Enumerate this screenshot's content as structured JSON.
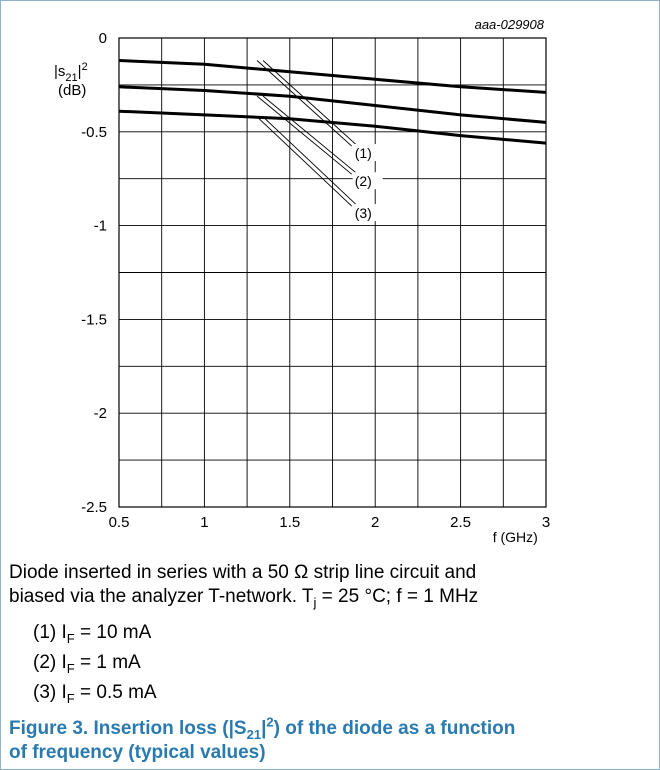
{
  "chart_data": {
    "type": "line",
    "id_label": "aaa-029908",
    "ylabel_main": "|s",
    "ylabel_sub": "21",
    "ylabel_tail": "|",
    "ylabel_sup": "2",
    "ylabel_unit": "(dB)",
    "xlabel": "f (GHz)",
    "xlim": [
      0.5,
      3.0
    ],
    "ylim": [
      -2.5,
      0
    ],
    "grid": true,
    "x_ticks": [
      0.5,
      1,
      1.5,
      2,
      2.5,
      3
    ],
    "x_tick_labels": [
      "0.5",
      "1",
      "1.5",
      "2",
      "2.5",
      "3"
    ],
    "y_ticks": [
      0,
      -0.5,
      -1,
      -1.5,
      -2,
      -2.5
    ],
    "y_tick_labels": [
      "0",
      "-0.5",
      "-1",
      "-1.5",
      "-2",
      "-2.5"
    ],
    "series": [
      {
        "name": "(1)",
        "x": [
          0.5,
          1.0,
          1.5,
          2.0,
          2.5,
          3.0
        ],
        "values": [
          -0.12,
          -0.14,
          -0.18,
          -0.22,
          -0.26,
          -0.29
        ]
      },
      {
        "name": "(2)",
        "x": [
          0.5,
          1.0,
          1.5,
          2.0,
          2.5,
          3.0
        ],
        "values": [
          -0.26,
          -0.28,
          -0.31,
          -0.36,
          -0.41,
          -0.45
        ]
      },
      {
        "name": "(3)",
        "x": [
          0.5,
          1.0,
          1.5,
          2.0,
          2.5,
          3.0
        ],
        "values": [
          -0.39,
          -0.41,
          -0.43,
          -0.47,
          -0.52,
          -0.56
        ]
      }
    ],
    "callouts": [
      {
        "label": "(1)",
        "x": 1.32,
        "y": -0.12,
        "label_at": [
          1.88,
          -0.64
        ]
      },
      {
        "label": "(2)",
        "x": 1.32,
        "y": -0.31,
        "label_at": [
          1.88,
          -0.79
        ]
      },
      {
        "label": "(3)",
        "x": 1.32,
        "y": -0.42,
        "label_at": [
          1.88,
          -0.96
        ]
      }
    ]
  },
  "caption": {
    "line1": "Diode inserted in series with a 50 Ω strip line circuit and",
    "line2_a": "biased via the analyzer T-network. T",
    "line2_sub": "j",
    "line2_b": " = 25 °C; f = 1 MHz"
  },
  "notes": [
    {
      "prefix": "(1) I",
      "sub": "F",
      "suffix": " = 10 mA"
    },
    {
      "prefix": "(2) I",
      "sub": "F",
      "suffix": " = 1 mA"
    },
    {
      "prefix": "(3) I",
      "sub": "F",
      "suffix": " = 0.5 mA"
    }
  ],
  "figure_title": {
    "a": "Figure 3.  Insertion loss (|S",
    "sub": "21",
    "b": "|",
    "sup": "2",
    "c": ") of the diode as a function",
    "line2": "of frequency (typical values)"
  },
  "colors": {
    "border": "#8cb4d2",
    "title": "#2a7ab0",
    "grid": "#000000"
  }
}
